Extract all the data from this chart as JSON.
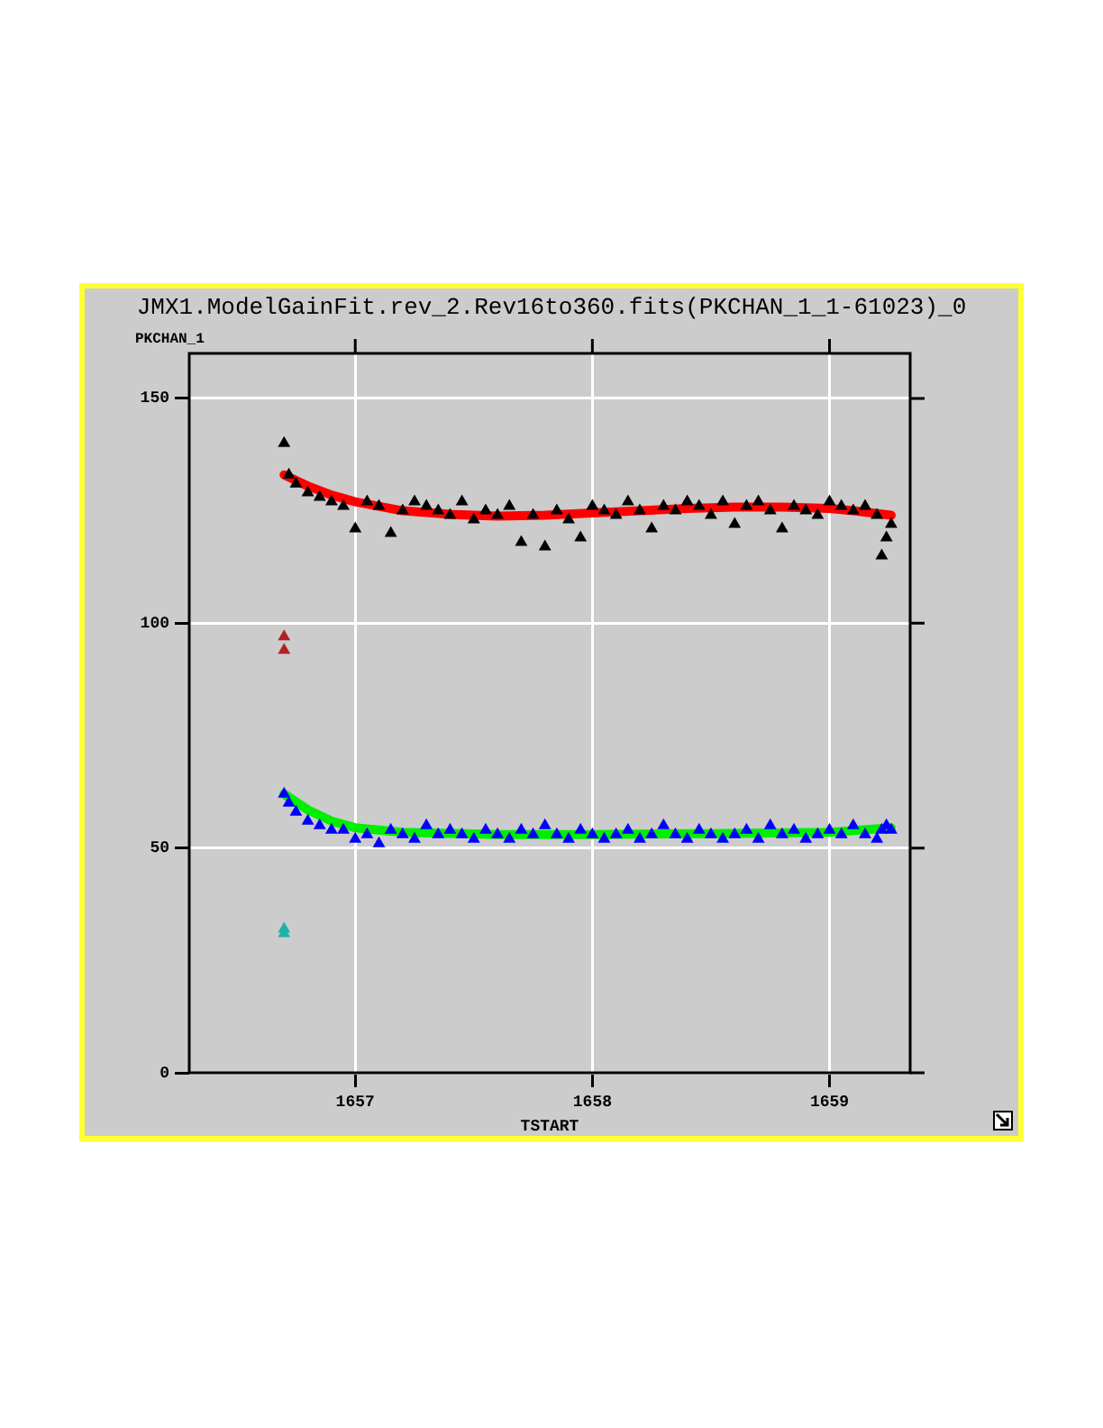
{
  "chart_data": {
    "type": "scatter",
    "title": "JMX1.ModelGainFit.rev_2.Rev16to360.fits(PKCHAN_1_1-61023)_0",
    "xlabel": "TSTART",
    "ylabel": "PKCHAN_1",
    "xlim": [
      1656.3,
      1659.34
    ],
    "xticks": [
      1657,
      1658,
      1659
    ],
    "ylim": [
      0,
      160
    ],
    "yticks": [
      0,
      50,
      100,
      150
    ],
    "grid": true,
    "legend": false,
    "marker": "triangle",
    "series": [
      {
        "color": "#000000",
        "x": [
          1656.7,
          1656.72,
          1656.75,
          1656.8,
          1656.85,
          1656.9,
          1656.95,
          1657.0,
          1657.05,
          1657.1,
          1657.15,
          1657.2,
          1657.25,
          1657.3,
          1657.35,
          1657.4,
          1657.45,
          1657.5,
          1657.55,
          1657.6,
          1657.65,
          1657.7,
          1657.75,
          1657.8,
          1657.85,
          1657.9,
          1657.95,
          1658.0,
          1658.05,
          1658.1,
          1658.15,
          1658.2,
          1658.25,
          1658.3,
          1658.35,
          1658.4,
          1658.45,
          1658.5,
          1658.55,
          1658.6,
          1658.65,
          1658.7,
          1658.75,
          1658.8,
          1658.85,
          1658.9,
          1658.95,
          1659.0,
          1659.05,
          1659.1,
          1659.15,
          1659.2,
          1659.22,
          1659.24,
          1659.26
        ],
        "values": [
          140,
          133,
          131,
          129,
          128,
          127,
          126,
          121,
          127,
          126,
          120,
          125,
          127,
          126,
          125,
          124,
          127,
          123,
          125,
          124,
          126,
          118,
          124,
          117,
          125,
          123,
          119,
          126,
          125,
          124,
          127,
          125,
          121,
          126,
          125,
          127,
          126,
          124,
          127,
          122,
          126,
          127,
          125,
          121,
          126,
          125,
          124,
          127,
          126,
          125,
          126,
          124,
          115,
          119,
          122
        ]
      },
      {
        "type": "line",
        "color": "#ff0000",
        "marker": "none",
        "x": [
          1656.7,
          1656.8,
          1656.9,
          1657.0,
          1657.1,
          1657.2,
          1657.4,
          1657.6,
          1657.8,
          1658.0,
          1658.2,
          1658.4,
          1658.6,
          1658.8,
          1659.0,
          1659.1,
          1659.26
        ],
        "values": [
          133,
          130.5,
          128.5,
          127,
          126,
          125,
          124.2,
          123.8,
          124,
          124.5,
          125,
          125.5,
          125.8,
          125.8,
          125.5,
          125,
          124
        ]
      },
      {
        "color": "#0000ff",
        "x": [
          1656.7,
          1656.72,
          1656.75,
          1656.8,
          1656.85,
          1656.9,
          1656.95,
          1657.0,
          1657.05,
          1657.1,
          1657.15,
          1657.2,
          1657.25,
          1657.3,
          1657.35,
          1657.4,
          1657.45,
          1657.5,
          1657.55,
          1657.6,
          1657.65,
          1657.7,
          1657.75,
          1657.8,
          1657.85,
          1657.9,
          1657.95,
          1658.0,
          1658.05,
          1658.1,
          1658.15,
          1658.2,
          1658.25,
          1658.3,
          1658.35,
          1658.4,
          1658.45,
          1658.5,
          1658.55,
          1658.6,
          1658.65,
          1658.7,
          1658.75,
          1658.8,
          1658.85,
          1658.9,
          1658.95,
          1659.0,
          1659.05,
          1659.1,
          1659.15,
          1659.2,
          1659.22,
          1659.24,
          1659.26
        ],
        "values": [
          62,
          60,
          58,
          56,
          55,
          54,
          54,
          52,
          53,
          51,
          54,
          53,
          52,
          55,
          53,
          54,
          53,
          52,
          54,
          53,
          52,
          54,
          53,
          55,
          53,
          52,
          54,
          53,
          52,
          53,
          54,
          52,
          53,
          55,
          53,
          52,
          54,
          53,
          52,
          53,
          54,
          52,
          55,
          53,
          54,
          52,
          53,
          54,
          53,
          55,
          53,
          52,
          54,
          55,
          54
        ]
      },
      {
        "type": "line",
        "color": "#00ee00",
        "marker": "none",
        "x": [
          1656.7,
          1656.8,
          1656.9,
          1657.0,
          1657.2,
          1657.6,
          1658.0,
          1658.5,
          1659.0,
          1659.26
        ],
        "values": [
          62,
          58.5,
          56,
          54.5,
          53.5,
          53,
          53,
          53.2,
          53.5,
          54.5
        ]
      },
      {
        "color": "#b22222",
        "x": [
          1656.7,
          1656.7
        ],
        "values": [
          97,
          94
        ]
      },
      {
        "color": "#20b2aa",
        "x": [
          1656.7,
          1656.7
        ],
        "values": [
          32,
          31
        ]
      }
    ]
  }
}
